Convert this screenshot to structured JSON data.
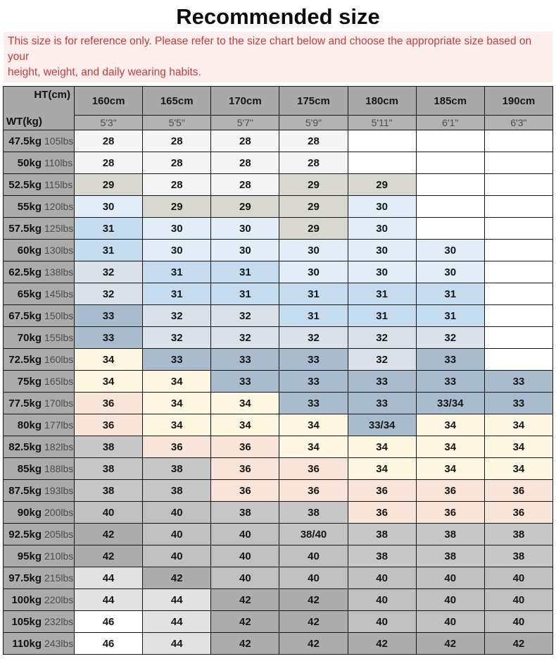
{
  "title": "Recommended size",
  "notice": {
    "line1": "This size is for reference only. Please refer to the size chart below and choose the appropriate size based on your",
    "line2": "height, weight, and daily wearing habits."
  },
  "chart_data": {
    "type": "table",
    "title": "Recommended size",
    "corner": {
      "ht_label": "HT(cm)",
      "wt_label": "WT(kg)"
    },
    "columns": [
      {
        "cm": "160cm",
        "ft": "5'3\""
      },
      {
        "cm": "165cm",
        "ft": "5'5\""
      },
      {
        "cm": "170cm",
        "ft": "5'7\""
      },
      {
        "cm": "175cm",
        "ft": "5'9\""
      },
      {
        "cm": "180cm",
        "ft": "5'11\""
      },
      {
        "cm": "185cm",
        "ft": "6'1\""
      },
      {
        "cm": "190cm",
        "ft": "6'3\""
      }
    ],
    "rows": [
      {
        "kg": "47.5kg",
        "lbs": "105lbs",
        "values": [
          "28",
          "28",
          "28",
          "28",
          "",
          "",
          ""
        ]
      },
      {
        "kg": "50kg",
        "lbs": "110lbs",
        "values": [
          "28",
          "28",
          "28",
          "28",
          "",
          "",
          ""
        ]
      },
      {
        "kg": "52.5kg",
        "lbs": "115lbs",
        "values": [
          "29",
          "28",
          "28",
          "29",
          "29",
          "",
          ""
        ]
      },
      {
        "kg": "55kg",
        "lbs": "120lbs",
        "values": [
          "30",
          "29",
          "29",
          "29",
          "30",
          "",
          ""
        ]
      },
      {
        "kg": "57.5kg",
        "lbs": "125lbs",
        "values": [
          "31",
          "30",
          "30",
          "29",
          "30",
          "",
          ""
        ]
      },
      {
        "kg": "60kg",
        "lbs": "130lbs",
        "values": [
          "31",
          "30",
          "30",
          "30",
          "30",
          "30",
          ""
        ]
      },
      {
        "kg": "62.5kg",
        "lbs": "138lbs",
        "values": [
          "32",
          "31",
          "31",
          "30",
          "30",
          "30",
          ""
        ]
      },
      {
        "kg": "65kg",
        "lbs": "145lbs",
        "values": [
          "32",
          "31",
          "31",
          "31",
          "31",
          "31",
          ""
        ]
      },
      {
        "kg": "67.5kg",
        "lbs": "150lbs",
        "values": [
          "33",
          "32",
          "32",
          "31",
          "31",
          "31",
          ""
        ]
      },
      {
        "kg": "70kg",
        "lbs": "155lbs",
        "values": [
          "33",
          "32",
          "32",
          "32",
          "32",
          "32",
          ""
        ]
      },
      {
        "kg": "72.5kg",
        "lbs": "160lbs",
        "values": [
          "34",
          "33",
          "33",
          "33",
          "32",
          "33",
          ""
        ]
      },
      {
        "kg": "75kg",
        "lbs": "165lbs",
        "values": [
          "34",
          "34",
          "33",
          "33",
          "33",
          "33",
          "33"
        ]
      },
      {
        "kg": "77.5kg",
        "lbs": "170lbs",
        "values": [
          "36",
          "34",
          "34",
          "33",
          "33",
          "33/34",
          "33"
        ]
      },
      {
        "kg": "80kg",
        "lbs": "177lbs",
        "values": [
          "36",
          "34",
          "34",
          "34",
          "33/34",
          "34",
          "34"
        ]
      },
      {
        "kg": "82.5kg",
        "lbs": "182lbs",
        "values": [
          "38",
          "36",
          "36",
          "34",
          "34",
          "34",
          "34"
        ]
      },
      {
        "kg": "85kg",
        "lbs": "188lbs",
        "values": [
          "38",
          "38",
          "36",
          "36",
          "34",
          "34",
          "34"
        ]
      },
      {
        "kg": "87.5kg",
        "lbs": "193lbs",
        "values": [
          "38",
          "38",
          "36",
          "36",
          "36",
          "36",
          "36"
        ]
      },
      {
        "kg": "90kg",
        "lbs": "200lbs",
        "values": [
          "40",
          "40",
          "38",
          "38",
          "36",
          "36",
          "36"
        ]
      },
      {
        "kg": "92.5kg",
        "lbs": "205lbs",
        "values": [
          "42",
          "40",
          "40",
          "38/40",
          "38",
          "38",
          "38"
        ]
      },
      {
        "kg": "95kg",
        "lbs": "210lbs",
        "values": [
          "42",
          "40",
          "40",
          "40",
          "38",
          "38",
          "38"
        ]
      },
      {
        "kg": "97.5kg",
        "lbs": "215lbs",
        "values": [
          "44",
          "42",
          "40",
          "40",
          "40",
          "40",
          "40"
        ]
      },
      {
        "kg": "100kg",
        "lbs": "220lbs",
        "values": [
          "44",
          "44",
          "42",
          "42",
          "40",
          "40",
          "40"
        ]
      },
      {
        "kg": "105kg",
        "lbs": "232lbs",
        "values": [
          "46",
          "44",
          "42",
          "42",
          "40",
          "40",
          "40"
        ]
      },
      {
        "kg": "110kg",
        "lbs": "243lbs",
        "values": [
          "46",
          "44",
          "42",
          "42",
          "42",
          "42",
          "42"
        ]
      }
    ]
  },
  "colors": {
    "28": "#f4f4f4",
    "29": "#d9d8d0",
    "30": "#e2edf7",
    "31": "#c5dcee",
    "32": "#dbe1e8",
    "33": "#a9bcce",
    "33/34": "#a9bcce",
    "34": "#fdf6e0",
    "36": "#f9e4da",
    "38": "#c7c7c7",
    "38/40": "#c3c3c3",
    "40": "#c0c0c0",
    "42": "#acacac",
    "44": "#e2e2e2",
    "46": "#ffffff",
    "blank": "#ffffff",
    "header_bg": "#a9a9a9",
    "feet_bg": "#b3b3b3",
    "left_bg": "#ababab",
    "notice_bg": "#fdeeee",
    "notice_text": "#c43c3c"
  }
}
